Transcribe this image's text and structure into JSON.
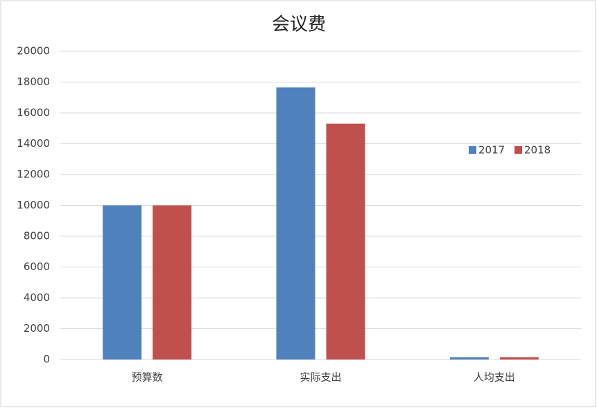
{
  "chart_data": {
    "type": "bar",
    "title": "会议费",
    "categories": [
      "预算数",
      "实际支出",
      "人均支出"
    ],
    "series": [
      {
        "name": "2017",
        "color": "#4f81bd",
        "values": [
          10000,
          17650,
          150
        ]
      },
      {
        "name": "2018",
        "color": "#c0504d",
        "values": [
          10000,
          15300,
          150
        ]
      }
    ],
    "ylim": [
      0,
      20000
    ],
    "yticks": [
      0,
      2000,
      4000,
      6000,
      8000,
      10000,
      12000,
      14000,
      16000,
      18000,
      20000
    ],
    "grid": true,
    "legend": "right"
  }
}
